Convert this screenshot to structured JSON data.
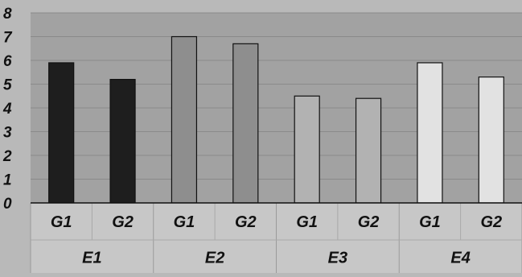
{
  "chart_data": {
    "type": "bar",
    "title": "",
    "xlabel": "",
    "ylabel": "",
    "ylim": [
      0,
      8
    ],
    "yticks": [
      0,
      1,
      2,
      3,
      4,
      5,
      6,
      7,
      8
    ],
    "grid": true,
    "legend": "none",
    "groups": [
      "E1",
      "E2",
      "E3",
      "E4"
    ],
    "subcategories": [
      "G1",
      "G2"
    ],
    "values": [
      [
        5.9,
        5.2
      ],
      [
        7.0,
        6.7
      ],
      [
        4.5,
        4.4
      ],
      [
        5.9,
        5.3
      ]
    ],
    "group_colors": [
      "#1e1e1e",
      "#8e8e8e",
      "#b2b2b2",
      "#e2e2e2"
    ]
  },
  "colors": {
    "plot_background": "#a2a2a2",
    "page_background": "#b9b9b9",
    "gridline": "#8a8a8a",
    "axis_label_panel": "#c7c7c7",
    "bar_outline": "#111111"
  }
}
